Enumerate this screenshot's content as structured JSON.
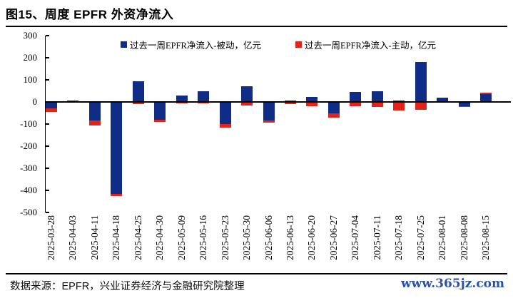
{
  "header": {
    "title": "图15、周度 EPFR 外资净流入"
  },
  "chart_data": {
    "type": "bar",
    "stacked": true,
    "title": "图15、周度 EPFR 外资净流入",
    "xlabel": "",
    "ylabel": "",
    "ylim": [
      -500,
      300
    ],
    "yticks": [
      300,
      200,
      100,
      0,
      -100,
      -200,
      -300,
      -400,
      -500
    ],
    "grid": false,
    "legend_position": "top-center",
    "categories": [
      "2025-03-28",
      "2025-04-03",
      "2025-04-11",
      "2025-04-18",
      "2025-04-25",
      "2025-04-30",
      "2025-05-09",
      "2025-05-16",
      "2025-05-23",
      "2025-05-30",
      "2025-06-06",
      "2025-06-13",
      "2025-06-20",
      "2025-06-27",
      "2025-07-04",
      "2025-07-11",
      "2025-07-18",
      "2025-07-25",
      "2025-08-01",
      "2025-08-08",
      "2025-08-15"
    ],
    "series": [
      {
        "name": "过去一周EPFR净流入-被动，亿元",
        "color": "#0F2C87",
        "values": [
          -30,
          7,
          -85,
          -415,
          92,
          -80,
          30,
          50,
          -100,
          70,
          -85,
          6,
          24,
          -50,
          45,
          48,
          8,
          180,
          20,
          -20,
          36
        ]
      },
      {
        "name": "过去一周EPFR净流入-主动，亿元",
        "color": "#E2231A",
        "values": [
          -15,
          0,
          -22,
          -12,
          -10,
          -10,
          -7,
          -8,
          -16,
          -15,
          -10,
          -10,
          -18,
          -20,
          -20,
          -21,
          -38,
          -35,
          0,
          -4,
          6
        ]
      }
    ]
  },
  "footer": {
    "source": "数据来源：EPFR，兴业证券经济与金融研究院整理",
    "watermark": "www.365jz.com",
    "watermark_color": "#2B50A8"
  }
}
